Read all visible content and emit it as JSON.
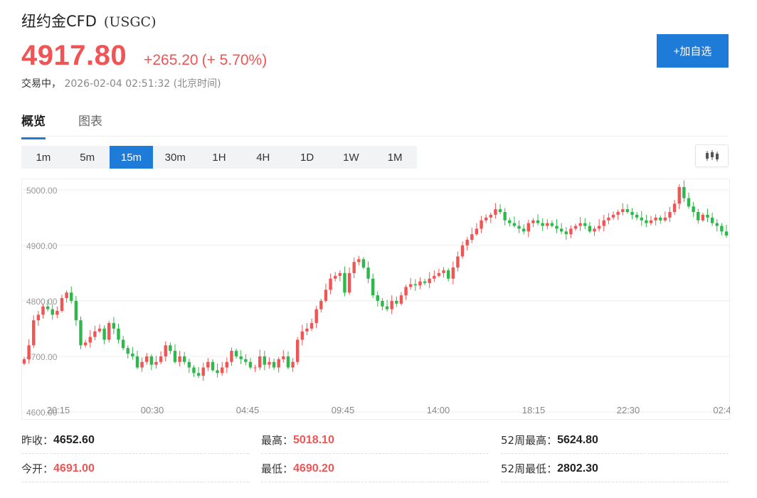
{
  "header": {
    "name": "纽约金CFD",
    "code": "(USGC)",
    "price": "4917.80",
    "change": "+265.20",
    "change_pct": "(+ 5.70%)",
    "status": "交易中，",
    "timestamp": "2026-02-04 02:51:32",
    "timezone": "(北京时间)",
    "add_watchlist_label": "+加自选"
  },
  "tabs": [
    {
      "label": "概览",
      "active": true
    },
    {
      "label": "图表",
      "active": false
    }
  ],
  "intervals": [
    {
      "label": "1m",
      "active": false
    },
    {
      "label": "5m",
      "active": false
    },
    {
      "label": "15m",
      "active": true
    },
    {
      "label": "30m",
      "active": false
    },
    {
      "label": "1H",
      "active": false
    },
    {
      "label": "4H",
      "active": false
    },
    {
      "label": "1D",
      "active": false
    },
    {
      "label": "1W",
      "active": false
    },
    {
      "label": "1M",
      "active": false
    }
  ],
  "colors": {
    "up": "#f05454",
    "down": "#2eb84b",
    "accent": "#1e7bd8",
    "grid": "#eeeeee"
  },
  "icons": {
    "chart_type": "candlestick-chart-icon"
  },
  "chart_data": {
    "type": "candlestick",
    "ylim": [
      4600,
      5010
    ],
    "yticks": [
      "5000.00",
      "4900.00",
      "4800.00",
      "4700.00",
      "4600.00"
    ],
    "xtick_labels": [
      "20:15",
      "00:30",
      "04:45",
      "09:45",
      "14:00",
      "18:15",
      "22:30",
      "02:4"
    ],
    "closes": [
      4695,
      4720,
      4765,
      4775,
      4790,
      4785,
      4775,
      4782,
      4805,
      4815,
      4800,
      4765,
      4720,
      4725,
      4735,
      4745,
      4750,
      4730,
      4760,
      4750,
      4730,
      4715,
      4705,
      4700,
      4680,
      4690,
      4700,
      4685,
      4690,
      4700,
      4720,
      4710,
      4690,
      4700,
      4690,
      4680,
      4670,
      4665,
      4680,
      4690,
      4675,
      4670,
      4680,
      4690,
      4710,
      4700,
      4695,
      4690,
      4680,
      4680,
      4700,
      4685,
      4690,
      4680,
      4695,
      4700,
      4680,
      4690,
      4730,
      4745,
      4750,
      4760,
      4785,
      4800,
      4820,
      4840,
      4845,
      4850,
      4815,
      4850,
      4870,
      4875,
      4860,
      4840,
      4810,
      4800,
      4790,
      4785,
      4800,
      4795,
      4810,
      4825,
      4830,
      4828,
      4835,
      4832,
      4840,
      4845,
      4850,
      4855,
      4840,
      4860,
      4880,
      4900,
      4910,
      4920,
      4930,
      4945,
      4950,
      4955,
      4965,
      4960,
      4945,
      4940,
      4935,
      4930,
      4925,
      4940,
      4945,
      4940,
      4935,
      4940,
      4935,
      4930,
      4925,
      4920,
      4930,
      4935,
      4940,
      4935,
      4925,
      4930,
      4935,
      4945,
      4950,
      4955,
      4960,
      4965,
      4960,
      4955,
      4950,
      4945,
      4940,
      4945,
      4950,
      4945,
      4950,
      4960,
      4975,
      5005,
      4985,
      4970,
      4960,
      4945,
      4955,
      4950,
      4940,
      4935,
      4925,
      4917.8
    ]
  },
  "stats": {
    "prev_close_label": "昨收：",
    "prev_close": "4652.60",
    "open_label": "今开：",
    "open": "4691.00",
    "high_label": "最高：",
    "high": "5018.10",
    "low_label": "最低：",
    "low": "4690.20",
    "w52_high_label": "52周最高：",
    "w52_high": "5624.80",
    "w52_low_label": "52周最低：",
    "w52_low": "2802.30"
  }
}
